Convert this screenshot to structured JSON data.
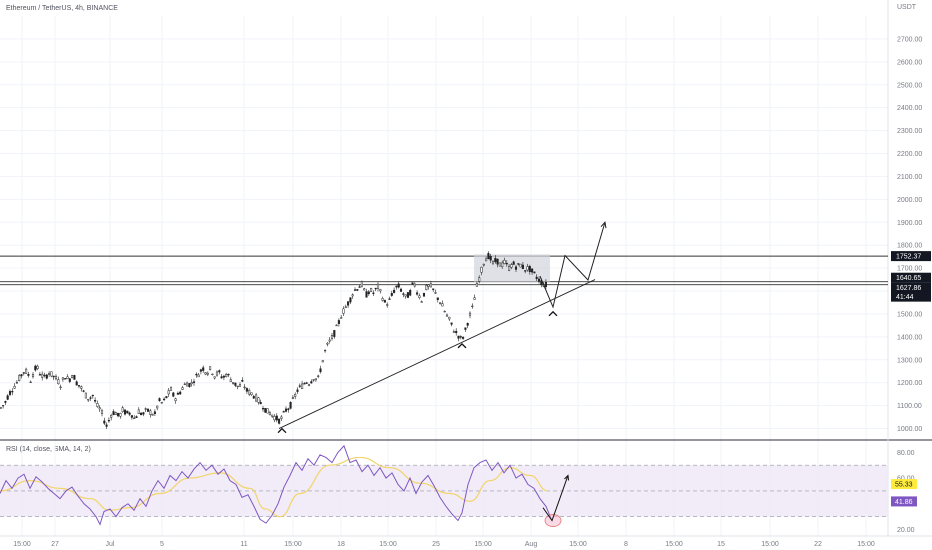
{
  "header": {
    "symbol_line": "Ethereum / TetherUS, 4h, BINANCE",
    "price_unit": "USDT"
  },
  "chart_data": [
    {
      "type": "candlestick",
      "title": "Ethereum / TetherUS, 4h, BINANCE",
      "ylabel": "USDT",
      "ylim": [
        950,
        2800
      ],
      "y_ticks": [
        "2700.00",
        "2600.00",
        "2500.00",
        "2400.00",
        "2300.00",
        "2200.00",
        "2100.00",
        "2000.00",
        "1900.00",
        "1800.00",
        "1700.00",
        "1600.00",
        "1500.00",
        "1400.00",
        "1300.00",
        "1200.00",
        "1100.00",
        "1000.00"
      ],
      "x_ticks": [
        "15:00",
        "27",
        "Jul",
        "5",
        "11",
        "15:00",
        "18",
        "15:00",
        "25",
        "15:00",
        "Aug",
        "15:00",
        "8",
        "15:00",
        "15",
        "15:00",
        "22",
        "15:00"
      ],
      "price_labels": [
        "1752.37",
        "1640.65",
        "1627.86",
        "41:44"
      ],
      "horizontal_levels": [
        1752.37,
        1640.65,
        1627.86
      ],
      "price_path": [
        [
          0,
          1090
        ],
        [
          4,
          1110
        ],
        [
          8,
          1150
        ],
        [
          12,
          1175
        ],
        [
          16,
          1200
        ],
        [
          20,
          1230
        ],
        [
          24,
          1255
        ],
        [
          27,
          1240
        ],
        [
          30,
          1210
        ],
        [
          33,
          1250
        ],
        [
          36,
          1270
        ],
        [
          40,
          1235
        ],
        [
          44,
          1220
        ],
        [
          48,
          1245
        ],
        [
          52,
          1230
        ],
        [
          56,
          1215
        ],
        [
          60,
          1190
        ],
        [
          64,
          1230
        ],
        [
          68,
          1210
        ],
        [
          72,
          1240
        ],
        [
          76,
          1200
        ],
        [
          80,
          1180
        ],
        [
          84,
          1150
        ],
        [
          88,
          1130
        ],
        [
          92,
          1145
        ],
        [
          96,
          1100
        ],
        [
          100,
          1080
        ],
        [
          103,
          1040
        ],
        [
          106,
          1010
        ],
        [
          110,
          1060
        ],
        [
          114,
          1075
        ],
        [
          118,
          1050
        ],
        [
          122,
          1080
        ],
        [
          126,
          1065
        ],
        [
          130,
          1070
        ],
        [
          134,
          1040
        ],
        [
          138,
          1075
        ],
        [
          142,
          1060
        ],
        [
          146,
          1080
        ],
        [
          150,
          1070
        ],
        [
          154,
          1060
        ],
        [
          158,
          1120
        ],
        [
          162,
          1110
        ],
        [
          166,
          1140
        ],
        [
          170,
          1170
        ],
        [
          174,
          1130
        ],
        [
          178,
          1150
        ],
        [
          182,
          1180
        ],
        [
          186,
          1200
        ],
        [
          190,
          1190
        ],
        [
          194,
          1220
        ],
        [
          198,
          1240
        ],
        [
          202,
          1265
        ],
        [
          206,
          1245
        ],
        [
          210,
          1260
        ],
        [
          214,
          1230
        ],
        [
          218,
          1245
        ],
        [
          222,
          1220
        ],
        [
          226,
          1240
        ],
        [
          230,
          1215
        ],
        [
          234,
          1195
        ],
        [
          238,
          1180
        ],
        [
          242,
          1200
        ],
        [
          246,
          1165
        ],
        [
          250,
          1155
        ],
        [
          254,
          1140
        ],
        [
          258,
          1120
        ],
        [
          262,
          1100
        ],
        [
          266,
          1075
        ],
        [
          270,
          1065
        ],
        [
          274,
          1050
        ],
        [
          278,
          1035
        ],
        [
          281,
          1045
        ],
        [
          285,
          1080
        ],
        [
          289,
          1095
        ],
        [
          293,
          1130
        ],
        [
          297,
          1170
        ],
        [
          301,
          1185
        ],
        [
          305,
          1205
        ],
        [
          309,
          1200
        ],
        [
          313,
          1225
        ],
        [
          317,
          1210
        ],
        [
          321,
          1280
        ],
        [
          325,
          1350
        ],
        [
          329,
          1380
        ],
        [
          333,
          1410
        ],
        [
          337,
          1450
        ],
        [
          341,
          1500
        ],
        [
          345,
          1530
        ],
        [
          349,
          1560
        ],
        [
          353,
          1600
        ],
        [
          357,
          1615
        ],
        [
          361,
          1630
        ],
        [
          365,
          1580
        ],
        [
          369,
          1605
        ],
        [
          373,
          1590
        ],
        [
          377,
          1620
        ],
        [
          381,
          1580
        ],
        [
          385,
          1540
        ],
        [
          389,
          1560
        ],
        [
          393,
          1600
        ],
        [
          397,
          1625
        ],
        [
          401,
          1600
        ],
        [
          405,
          1570
        ],
        [
          409,
          1590
        ],
        [
          413,
          1640
        ],
        [
          417,
          1590
        ],
        [
          421,
          1560
        ],
        [
          425,
          1610
        ],
        [
          429,
          1625
        ],
        [
          433,
          1600
        ],
        [
          437,
          1570
        ],
        [
          441,
          1540
        ],
        [
          445,
          1500
        ],
        [
          449,
          1470
        ],
        [
          453,
          1430
        ],
        [
          457,
          1410
        ],
        [
          461,
          1385
        ],
        [
          464,
          1420
        ],
        [
          468,
          1480
        ],
        [
          472,
          1530
        ],
        [
          476,
          1620
        ],
        [
          480,
          1680
        ],
        [
          484,
          1740
        ],
        [
          488,
          1755
        ],
        [
          492,
          1720
        ],
        [
          496,
          1735
        ],
        [
          500,
          1710
        ],
        [
          504,
          1725
        ],
        [
          508,
          1700
        ],
        [
          512,
          1720
        ],
        [
          516,
          1705
        ],
        [
          520,
          1715
        ],
        [
          524,
          1695
        ],
        [
          528,
          1700
        ],
        [
          532,
          1680
        ],
        [
          536,
          1660
        ],
        [
          540,
          1640
        ],
        [
          544,
          1627
        ]
      ],
      "annotations": {
        "uptrend_line": [
          [
            279,
            1000
          ],
          [
            595,
            1650
          ]
        ],
        "consolidation_box": [
          [
            474,
            1760
          ],
          [
            550,
            1640
          ]
        ],
        "projection_path": [
          [
            540,
            1665
          ],
          [
            553,
            1530
          ],
          [
            565,
            1755
          ],
          [
            588,
            1648
          ],
          [
            605,
            1900
          ]
        ],
        "swing_low_marks": [
          [
            282,
            995
          ],
          [
            462,
            1365
          ],
          [
            553,
            1505
          ]
        ]
      }
    },
    {
      "type": "line",
      "title": "RSI (14, close, SMA, 14, 2)",
      "ylim": [
        15,
        88
      ],
      "y_ticks": [
        "80.00",
        "60.00",
        "40.00",
        "20.00"
      ],
      "band": [
        30,
        70
      ],
      "midline": 50,
      "value_labels": [
        "55.33",
        "41.86"
      ],
      "series": [
        {
          "name": "RSI",
          "values": [
            [
              0,
              48
            ],
            [
              6,
              58
            ],
            [
              12,
              52
            ],
            [
              18,
              60
            ],
            [
              24,
              63
            ],
            [
              30,
              52
            ],
            [
              36,
              61
            ],
            [
              42,
              57
            ],
            [
              48,
              52
            ],
            [
              54,
              48
            ],
            [
              60,
              44
            ],
            [
              66,
              50
            ],
            [
              72,
              53
            ],
            [
              78,
              46
            ],
            [
              84,
              40
            ],
            [
              90,
              36
            ],
            [
              96,
              30
            ],
            [
              100,
              24
            ],
            [
              104,
              34
            ],
            [
              110,
              36
            ],
            [
              116,
              30
            ],
            [
              122,
              37
            ],
            [
              128,
              40
            ],
            [
              134,
              35
            ],
            [
              140,
              44
            ],
            [
              146,
              38
            ],
            [
              152,
              50
            ],
            [
              158,
              58
            ],
            [
              164,
              52
            ],
            [
              170,
              62
            ],
            [
              176,
              58
            ],
            [
              182,
              65
            ],
            [
              188,
              60
            ],
            [
              194,
              67
            ],
            [
              200,
              72
            ],
            [
              206,
              66
            ],
            [
              212,
              70
            ],
            [
              218,
              63
            ],
            [
              224,
              67
            ],
            [
              230,
              58
            ],
            [
              236,
              55
            ],
            [
              242,
              45
            ],
            [
              248,
              47
            ],
            [
              254,
              38
            ],
            [
              260,
              28
            ],
            [
              266,
              25
            ],
            [
              272,
              31
            ],
            [
              278,
              40
            ],
            [
              284,
              53
            ],
            [
              290,
              62
            ],
            [
              296,
              72
            ],
            [
              302,
              66
            ],
            [
              308,
              75
            ],
            [
              314,
              70
            ],
            [
              320,
              78
            ],
            [
              326,
              76
            ],
            [
              332,
              72
            ],
            [
              338,
              80
            ],
            [
              344,
              85
            ],
            [
              350,
              72
            ],
            [
              356,
              74
            ],
            [
              362,
              65
            ],
            [
              368,
              70
            ],
            [
              374,
              62
            ],
            [
              380,
              68
            ],
            [
              386,
              60
            ],
            [
              392,
              64
            ],
            [
              398,
              55
            ],
            [
              404,
              50
            ],
            [
              410,
              60
            ],
            [
              416,
              48
            ],
            [
              422,
              57
            ],
            [
              428,
              62
            ],
            [
              434,
              54
            ],
            [
              440,
              45
            ],
            [
              446,
              38
            ],
            [
              452,
              32
            ],
            [
              458,
              27
            ],
            [
              462,
              33
            ],
            [
              468,
              55
            ],
            [
              474,
              68
            ],
            [
              480,
              72
            ],
            [
              486,
              74
            ],
            [
              492,
              66
            ],
            [
              498,
              72
            ],
            [
              504,
              64
            ],
            [
              510,
              70
            ],
            [
              516,
              60
            ],
            [
              522,
              63
            ],
            [
              528,
              55
            ],
            [
              534,
              52
            ],
            [
              540,
              44
            ],
            [
              546,
              38
            ],
            [
              552,
              27
            ]
          ]
        },
        {
          "name": "SMA",
          "values": [
            [
              0,
              50
            ],
            [
              30,
              58
            ],
            [
              60,
              52
            ],
            [
              90,
              44
            ],
            [
              110,
              35
            ],
            [
              130,
              37
            ],
            [
              160,
              48
            ],
            [
              190,
              60
            ],
            [
              220,
              64
            ],
            [
              250,
              52
            ],
            [
              265,
              36
            ],
            [
              280,
              30
            ],
            [
              300,
              48
            ],
            [
              330,
              70
            ],
            [
              360,
              76
            ],
            [
              390,
              68
            ],
            [
              420,
              56
            ],
            [
              450,
              48
            ],
            [
              470,
              42
            ],
            [
              490,
              58
            ],
            [
              510,
              68
            ],
            [
              530,
              62
            ],
            [
              548,
              50
            ]
          ]
        }
      ],
      "annotations": {
        "projection_arrow": [
          [
            543,
            37
          ],
          [
            552,
            27
          ],
          [
            568,
            62
          ]
        ],
        "marker_circle": [
          553,
          27
        ]
      }
    }
  ],
  "colors": {
    "up": "#222222",
    "down": "#222222",
    "rsi_line": "#7e57c2",
    "rsi_sma": "#f2d46b",
    "rsi_band": "#ede7f6",
    "level_label_bg": "#131722",
    "rsi_label_yellow": "#ffeb3b",
    "rsi_label_purple": "#7e57c2",
    "marker_circle": "#f8bbd0"
  }
}
